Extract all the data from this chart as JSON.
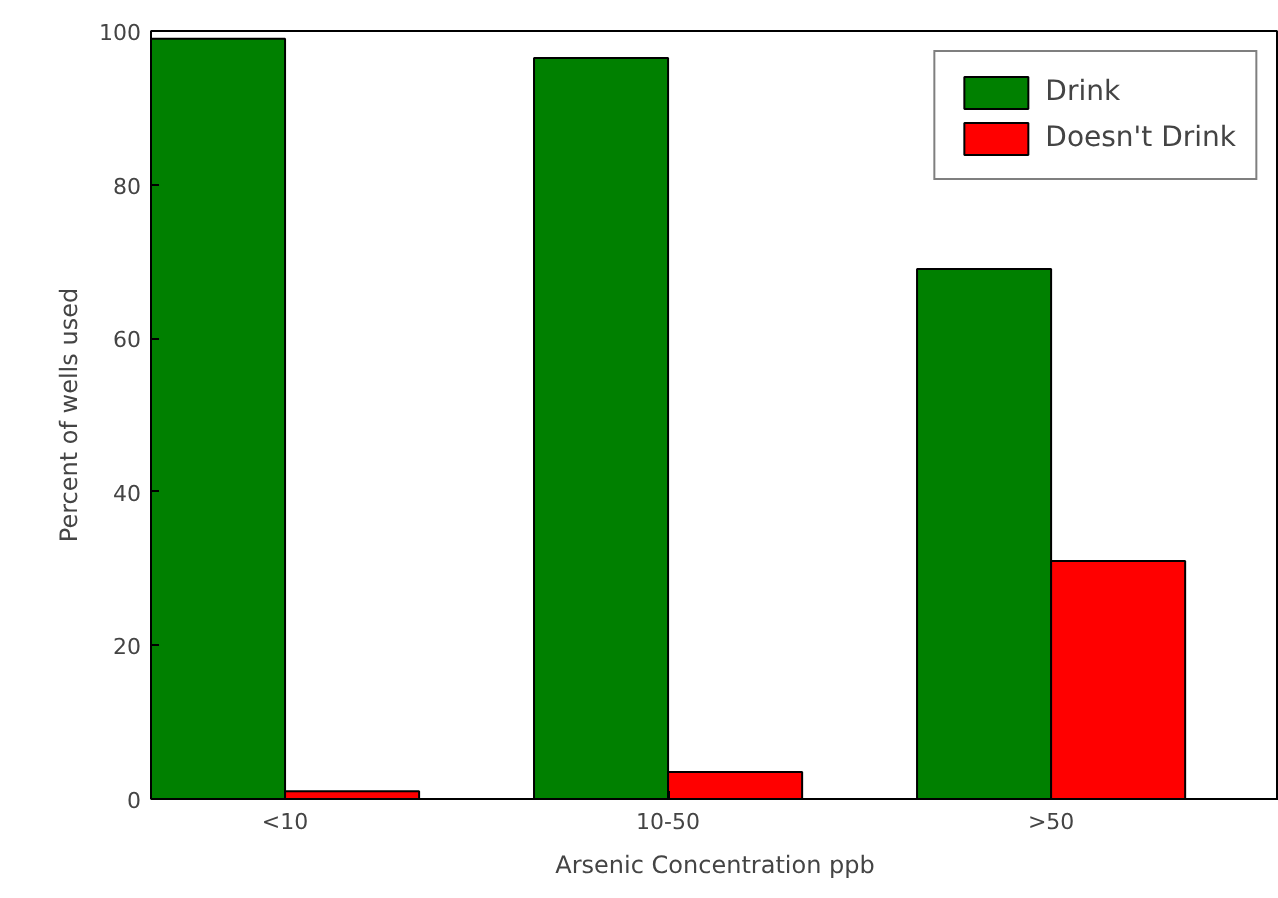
{
  "chart_data": {
    "type": "bar",
    "xlabel": "Arsenic Concentration ppb",
    "ylabel": "Percent of wells used",
    "categories": [
      "<10",
      "10-50",
      ">50"
    ],
    "series": [
      {
        "name": "Drink",
        "color": "#008000",
        "values": [
          99,
          96.5,
          69
        ]
      },
      {
        "name": "Doesn't Drink",
        "color": "#ff0000",
        "values": [
          1,
          3.5,
          31
        ]
      }
    ],
    "ylim": [
      0,
      100
    ],
    "yticks": [
      0,
      20,
      40,
      60,
      80,
      100
    ],
    "grid": false,
    "legend": "top right"
  }
}
